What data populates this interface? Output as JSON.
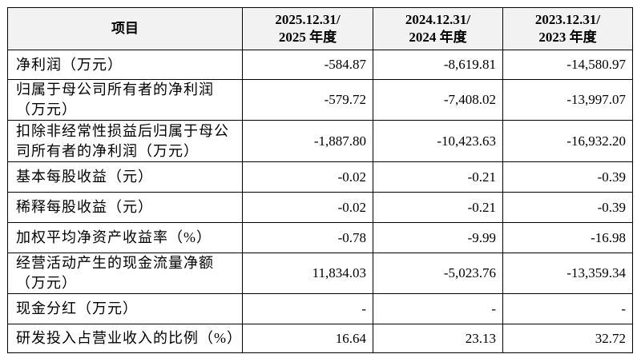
{
  "table": {
    "header": [
      "项目",
      [
        "2025.12.31/",
        "2025 年度"
      ],
      [
        "2024.12.31/",
        "2024 年度"
      ],
      [
        "2023.12.31/",
        "2023 年度"
      ]
    ],
    "rows": [
      [
        "净利润（万元）",
        "-584.87",
        "-8,619.81",
        "-14,580.97"
      ],
      [
        "归属于母公司所有者的净利润（万元）",
        "-579.72",
        "-7,408.02",
        "-13,997.07"
      ],
      [
        "扣除非经常性损益后归属于母公司所有者的净利润（万元）",
        "-1,887.80",
        "-10,423.63",
        "-16,932.20"
      ],
      [
        "基本每股收益（元）",
        "-0.02",
        "-0.21",
        "-0.39"
      ],
      [
        "稀释每股收益（元）",
        "-0.02",
        "-0.21",
        "-0.39"
      ],
      [
        "加权平均净资产收益率（%）",
        "-0.78",
        "-9.99",
        "-16.98"
      ],
      [
        "经营活动产生的现金流量净额（万元）",
        "11,834.03",
        "-5,023.76",
        "-13,359.34"
      ],
      [
        "现金分红（万元）",
        "-",
        "-",
        "-"
      ],
      [
        "研发投入占营业收入的比例（%）",
        "16.64",
        "23.13",
        "32.72"
      ]
    ]
  }
}
